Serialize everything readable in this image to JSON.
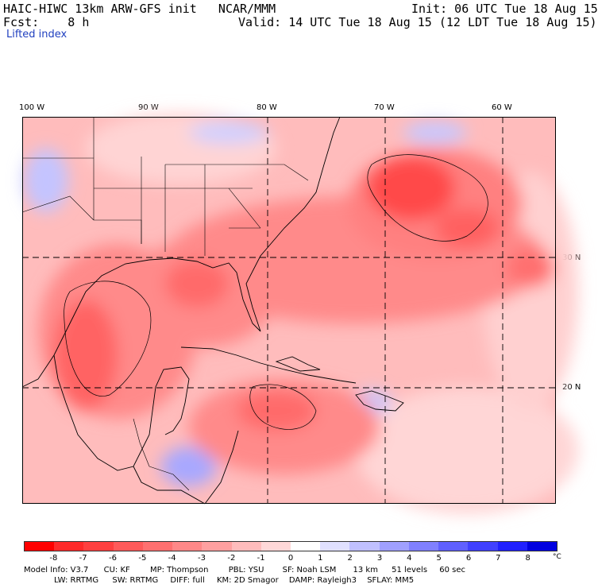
{
  "header": {
    "title_left": "HAIC-HIWC 13km ARW-GFS init   NCAR/MMM",
    "fcst_label": "Fcst:",
    "fcst_value": "8 h",
    "init": "Init: 06 UTC Tue 18 Aug 15",
    "valid": "Valid: 14 UTC Tue 18 Aug 15 (12 LDT Tue 18 Aug 15)",
    "field": "Lifted index"
  },
  "axes": {
    "lon_labels": [
      "100 W",
      "90 W",
      "80 W",
      "70 W",
      "60 W"
    ],
    "lat_labels": [
      "30 N",
      "20 N"
    ],
    "grid_style": "dashed"
  },
  "colorbar": {
    "labels": [
      "-8",
      "-7",
      "-6",
      "-5",
      "-4",
      "-3",
      "-2",
      "-1",
      "0",
      "1",
      "2",
      "3",
      "4",
      "5",
      "6",
      "7",
      "8"
    ],
    "unit": "°C",
    "colors": [
      "#ff0000",
      "#ff2a2a",
      "#ff4040",
      "#ff5a5a",
      "#ff7070",
      "#ff8888",
      "#ffa0a0",
      "#ffbcbc",
      "#ffd8d8",
      "#ffffff",
      "#e0e0ff",
      "#c0c0ff",
      "#a0a0ff",
      "#8080ff",
      "#6060ff",
      "#4040ff",
      "#2020ff",
      "#0000e0"
    ]
  },
  "model_info": {
    "line1": [
      "Model Info: V3.7",
      "CU: KF",
      "MP: Thompson",
      "PBL: YSU",
      "SF: Noah LSM",
      "13 km",
      "51 levels",
      "60 sec"
    ],
    "line2": [
      "LW: RRTMG",
      "SW: RRTMG",
      "DIFF: full",
      "KM: 2D Smagor",
      "DAMP: Rayleigh3",
      "SFLAY: MM5"
    ]
  },
  "colors": {
    "background": "#ffffff",
    "strong_negative": "#ff3a3a",
    "moderate_negative": "#ff8a8a",
    "weak_negative": "#ffc4c4",
    "positive": "#b8b8ff"
  }
}
